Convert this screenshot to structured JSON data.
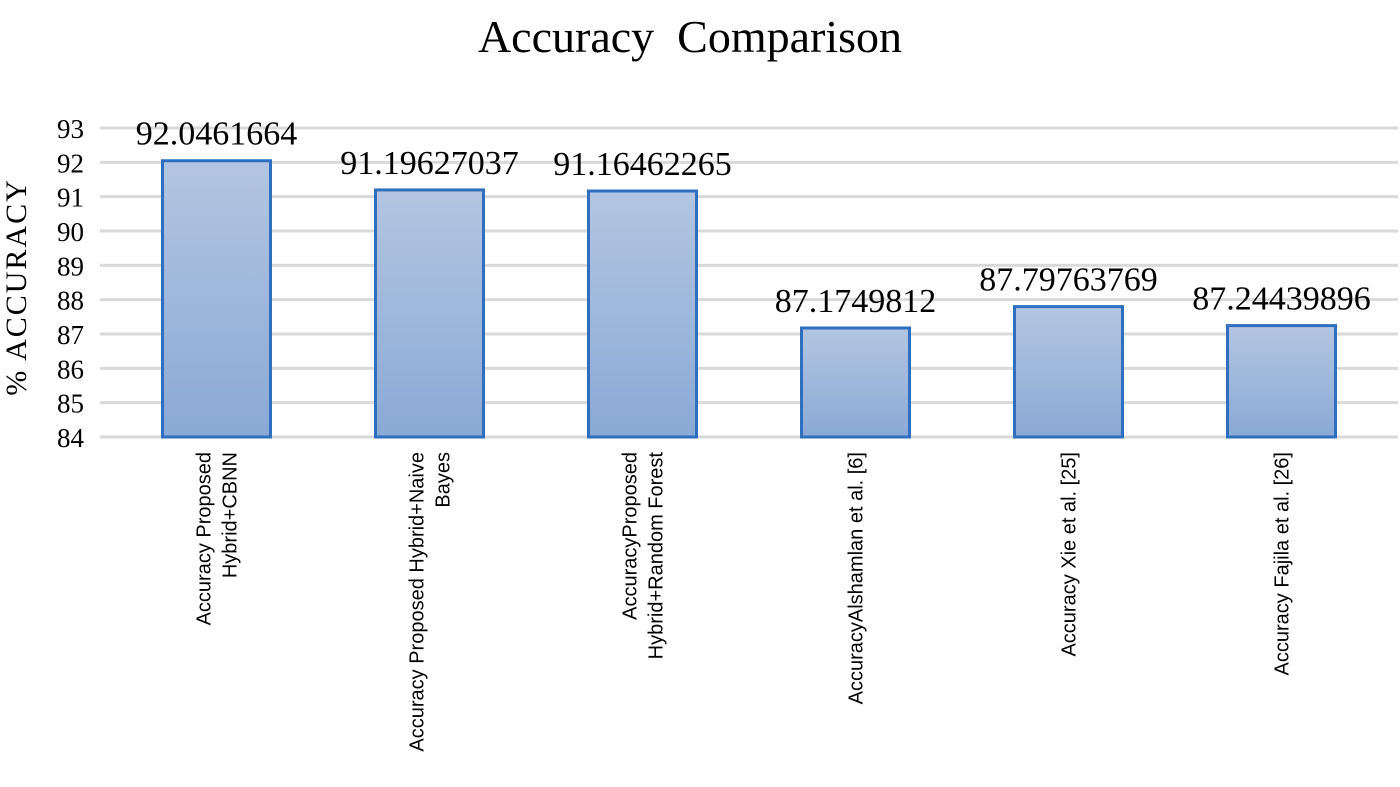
{
  "chart_data": {
    "type": "bar",
    "title": "Accuracy  Comparison",
    "ylabel": "% ACCURACY",
    "xlabel": "",
    "ylim": [
      84,
      93
    ],
    "yticks": [
      84,
      85,
      86,
      87,
      88,
      89,
      90,
      91,
      92,
      93
    ],
    "grid": true,
    "categories": [
      [
        "Accuracy Proposed",
        "Hybrid+CBNN"
      ],
      [
        "Accuracy Proposed Hybrid+Naive",
        "Bayes"
      ],
      [
        "AccuracyProposed",
        "Hybrid+Random Forest"
      ],
      [
        "AccuracyAlshamlan et al. [6]"
      ],
      [
        "Accuracy Xie et al. [25]"
      ],
      [
        "Accuracy Fajila et al. [26]"
      ]
    ],
    "values": [
      92.0461664,
      91.19627037,
      91.16462265,
      87.1749812,
      87.79763769,
      87.24439896
    ],
    "data_labels": [
      "92.0461664",
      "91.19627037",
      "91.16462265",
      "87.1749812",
      "87.79763769",
      "87.24439896"
    ],
    "colors": {
      "bar_top": "#b3c5e1",
      "bar_bottom": "#8aa9d6",
      "bar_border": "#2f6fbd",
      "grid": "#d9d9d9"
    }
  }
}
